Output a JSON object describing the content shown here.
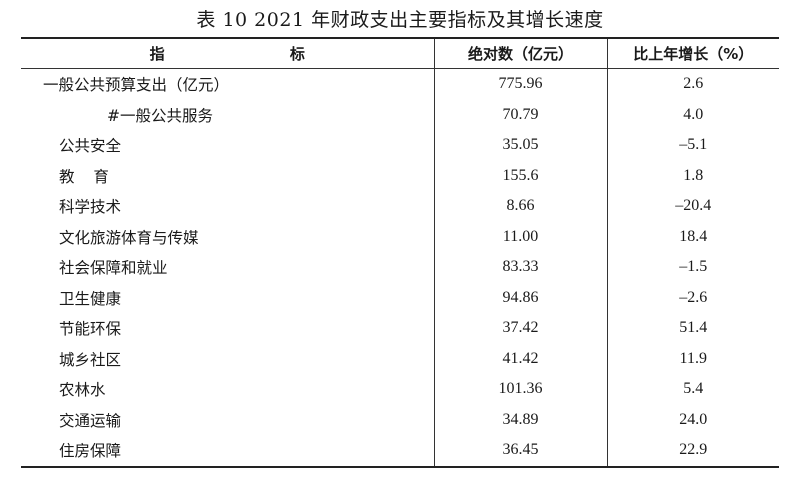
{
  "title": "表 10 2021 年财政支出主要指标及其增长速度",
  "headers": {
    "col1": "指 标",
    "col2": "绝对数（亿元）",
    "col3": "比上年增长（%）"
  },
  "rows": [
    {
      "label": "一般公共预算支出（亿元）",
      "value": "775.96",
      "growth": "2.6"
    },
    {
      "label": "#一般公共服务",
      "value": "70.79",
      "growth": "4.0"
    },
    {
      "label": "公共安全",
      "value": "35.05",
      "growth": "–5.1"
    },
    {
      "label": "教 育",
      "value": "155.6",
      "growth": "1.8"
    },
    {
      "label": "科学技术",
      "value": "8.66",
      "growth": "–20.4"
    },
    {
      "label": "文化旅游体育与传媒",
      "value": "11.00",
      "growth": "18.4"
    },
    {
      "label": "社会保障和就业",
      "value": "83.33",
      "growth": "–1.5"
    },
    {
      "label": "卫生健康",
      "value": "94.86",
      "growth": "–2.6"
    },
    {
      "label": "节能环保",
      "value": "37.42",
      "growth": "51.4"
    },
    {
      "label": "城乡社区",
      "value": "41.42",
      "growth": "11.9"
    },
    {
      "label": "农林水",
      "value": "101.36",
      "growth": "5.4"
    },
    {
      "label": "交通运输",
      "value": "34.89",
      "growth": "24.0"
    },
    {
      "label": "住房保障",
      "value": "36.45",
      "growth": "22.9"
    }
  ]
}
